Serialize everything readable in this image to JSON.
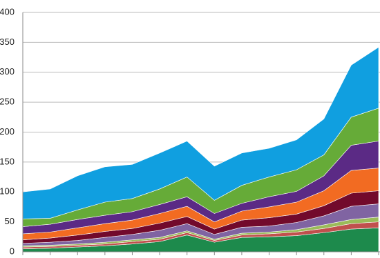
{
  "chart_data": {
    "type": "stacked_area",
    "categories": [
      null,
      null,
      null,
      null,
      null,
      null,
      null,
      null,
      null,
      null,
      null,
      null,
      null,
      null
    ],
    "ylim": [
      0,
      400
    ],
    "yticks": [
      0,
      50,
      100,
      150,
      200,
      250,
      300,
      350,
      400
    ],
    "grid": true,
    "series": [
      {
        "color": "#1d8a4c",
        "values": [
          5,
          6,
          8,
          10,
          13,
          17,
          28,
          16,
          24,
          25,
          27,
          32,
          38,
          40
        ]
      },
      {
        "color": "#c0504d",
        "values": [
          3,
          3,
          3,
          3,
          4,
          4,
          4,
          3,
          4,
          5,
          6,
          7,
          9,
          10
        ]
      },
      {
        "color": "#9bbb59",
        "values": [
          2,
          2,
          2,
          3,
          3,
          3,
          3,
          2,
          3,
          3,
          4,
          6,
          7,
          8
        ]
      },
      {
        "color": "#8064a2",
        "values": [
          4,
          5,
          6,
          8,
          9,
          12,
          12,
          8,
          10,
          10,
          12,
          15,
          22,
          22
        ]
      },
      {
        "color": "#720a2c",
        "values": [
          6,
          7,
          9,
          10,
          10,
          12,
          12,
          9,
          12,
          14,
          14,
          17,
          22,
          22
        ]
      },
      {
        "color": "#f26b22",
        "values": [
          10,
          10,
          12,
          13,
          14,
          16,
          17,
          12,
          15,
          18,
          20,
          25,
          38,
          38
        ]
      },
      {
        "color": "#5b2a85",
        "values": [
          12,
          13,
          14,
          14,
          14,
          15,
          16,
          14,
          13,
          17,
          18,
          25,
          42,
          45
        ]
      },
      {
        "color": "#66ab38",
        "values": [
          13,
          10,
          16,
          22,
          22,
          26,
          33,
          22,
          30,
          33,
          36,
          35,
          47,
          55
        ]
      },
      {
        "color": "#109fe0",
        "values": [
          45,
          49,
          57,
          59,
          57,
          60,
          60,
          57,
          54,
          48,
          50,
          60,
          87,
          102
        ]
      }
    ]
  }
}
